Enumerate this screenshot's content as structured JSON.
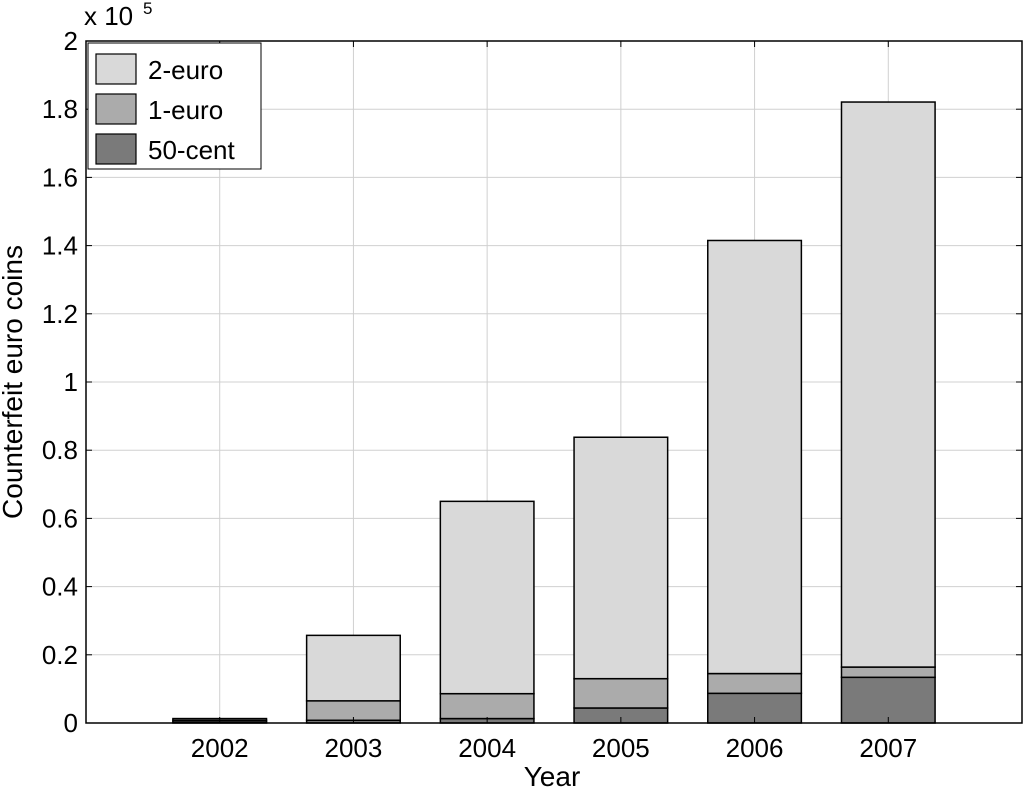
{
  "chart_data": {
    "type": "bar",
    "stacked": true,
    "xlabel": "Year",
    "ylabel": "Counterfeit euro coins",
    "y_multiplier_label": "x 10",
    "y_multiplier_exponent": "5",
    "categories": [
      "2002",
      "2003",
      "2004",
      "2005",
      "2006",
      "2007"
    ],
    "series": [
      {
        "name": "50-cent",
        "color": "#7a7a7a",
        "values": [
          300,
          800,
          1300,
          4400,
          8700,
          13400
        ]
      },
      {
        "name": "1-euro",
        "color": "#ababab",
        "values": [
          500,
          5700,
          7300,
          8600,
          5800,
          3000
        ]
      },
      {
        "name": "2-euro",
        "color": "#d9d9d9",
        "values": [
          500,
          19200,
          56400,
          70800,
          127000,
          165700
        ]
      }
    ],
    "ylim": [
      0,
      200000
    ],
    "yticks": [
      0,
      20000,
      40000,
      60000,
      80000,
      100000,
      120000,
      140000,
      160000,
      180000,
      200000
    ],
    "ytick_labels": [
      "0",
      "0.2",
      "0.4",
      "0.6",
      "0.8",
      "1",
      "1.2",
      "1.4",
      "1.6",
      "1.8",
      "2"
    ],
    "grid": true,
    "legend": {
      "position": "top-left",
      "entries": [
        "2-euro",
        "1-euro",
        "50-cent"
      ]
    }
  }
}
